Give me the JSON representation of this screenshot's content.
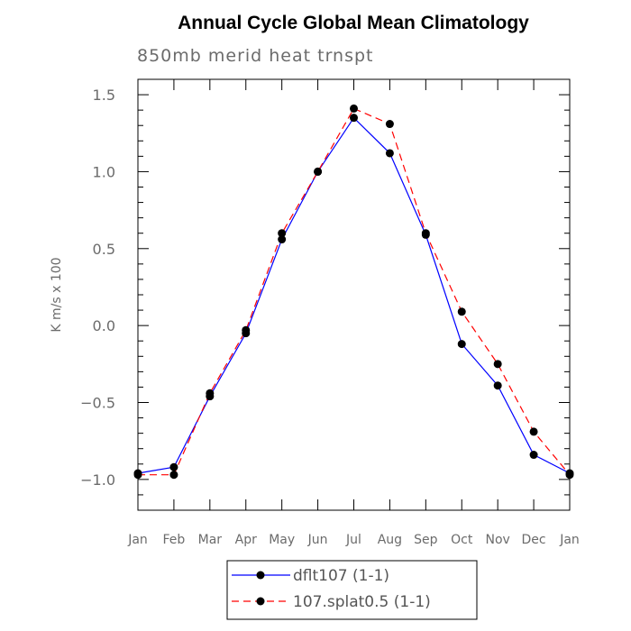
{
  "chart_data": {
    "type": "line",
    "title": "Annual Cycle Global Mean Climatology",
    "subtitle": "850mb merid heat trnspt",
    "xlabel": "",
    "ylabel": "K m/s x 100",
    "categories": [
      "Jan",
      "Feb",
      "Mar",
      "Apr",
      "May",
      "Jun",
      "Jul",
      "Aug",
      "Sep",
      "Oct",
      "Nov",
      "Dec",
      "Jan"
    ],
    "ylim": [
      -1.2,
      1.6
    ],
    "yticks": [
      -1.0,
      -0.5,
      0.0,
      0.5,
      1.0,
      1.5
    ],
    "ytick_labels": [
      "−1.0",
      "−0.5",
      "0.0",
      "0.5",
      "1.0",
      "1.5"
    ],
    "grid": false,
    "legend_position": "bottom",
    "series": [
      {
        "name": "dflt107 (1-1)",
        "color": "#0000ff",
        "dash": "solid",
        "values": [
          -0.96,
          -0.92,
          -0.46,
          -0.05,
          0.56,
          1.0,
          1.35,
          1.12,
          0.59,
          -0.12,
          -0.39,
          -0.84,
          -0.96
        ]
      },
      {
        "name": "107.splat0.5 (1-1)",
        "color": "#ff0000",
        "dash": "dashed",
        "values": [
          -0.97,
          -0.97,
          -0.44,
          -0.03,
          0.6,
          1.0,
          1.41,
          1.31,
          0.6,
          0.09,
          -0.25,
          -0.69,
          -0.97
        ]
      }
    ]
  }
}
